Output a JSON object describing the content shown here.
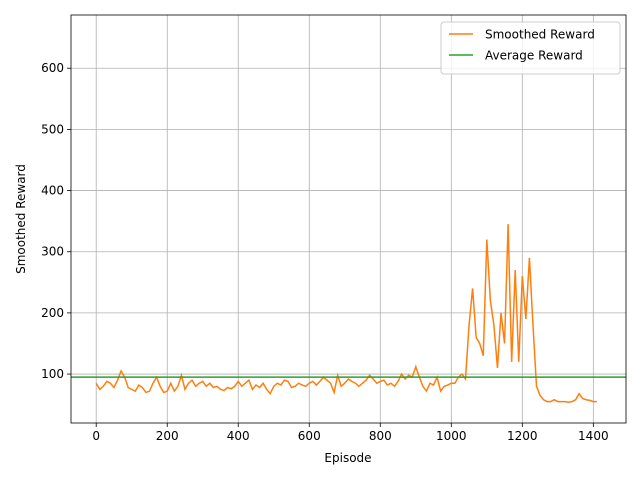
{
  "chart_data": {
    "type": "line",
    "xlabel": "Episode",
    "ylabel": "Smoothed Reward",
    "x": [
      0,
      10,
      20,
      30,
      40,
      50,
      60,
      70,
      80,
      90,
      100,
      110,
      120,
      130,
      140,
      150,
      160,
      170,
      180,
      190,
      200,
      210,
      220,
      230,
      240,
      250,
      260,
      270,
      280,
      290,
      300,
      310,
      320,
      330,
      340,
      350,
      360,
      370,
      380,
      390,
      400,
      410,
      420,
      430,
      440,
      450,
      460,
      470,
      480,
      490,
      500,
      510,
      520,
      530,
      540,
      550,
      560,
      570,
      580,
      590,
      600,
      610,
      620,
      630,
      640,
      650,
      660,
      670,
      680,
      690,
      700,
      710,
      720,
      730,
      740,
      750,
      760,
      770,
      780,
      790,
      800,
      810,
      820,
      830,
      840,
      850,
      860,
      870,
      880,
      890,
      900,
      910,
      920,
      930,
      940,
      950,
      960,
      970,
      980,
      990,
      1000,
      1010,
      1020,
      1030,
      1040,
      1050,
      1060,
      1070,
      1080,
      1090,
      1100,
      1110,
      1120,
      1130,
      1140,
      1150,
      1160,
      1170,
      1180,
      1190,
      1200,
      1210,
      1220,
      1230,
      1240,
      1250,
      1260,
      1270,
      1280,
      1290,
      1300,
      1310,
      1320,
      1330,
      1340,
      1350,
      1360,
      1370,
      1380,
      1390,
      1400,
      1410
    ],
    "series": [
      {
        "name": "Smoothed Reward",
        "color": "#ff7f0e",
        "values": [
          85,
          75,
          80,
          88,
          85,
          78,
          90,
          105,
          95,
          78,
          75,
          72,
          82,
          78,
          70,
          72,
          85,
          95,
          80,
          70,
          72,
          85,
          72,
          80,
          98,
          75,
          85,
          90,
          80,
          85,
          88,
          80,
          85,
          78,
          80,
          75,
          73,
          78,
          76,
          80,
          88,
          80,
          85,
          90,
          75,
          82,
          78,
          85,
          75,
          68,
          80,
          85,
          82,
          90,
          88,
          78,
          80,
          85,
          82,
          80,
          85,
          88,
          82,
          88,
          95,
          90,
          85,
          70,
          98,
          80,
          85,
          92,
          88,
          85,
          80,
          85,
          90,
          98,
          92,
          85,
          88,
          90,
          82,
          85,
          80,
          88,
          100,
          92,
          98,
          95,
          112,
          95,
          80,
          72,
          85,
          82,
          95,
          72,
          80,
          82,
          85,
          85,
          95,
          100,
          92,
          180,
          240,
          160,
          150,
          130,
          320,
          220,
          180,
          110,
          200,
          150,
          345,
          120,
          270,
          120,
          260,
          190,
          290,
          180,
          80,
          65,
          58,
          55,
          55,
          58,
          55,
          55,
          55,
          54,
          55,
          58,
          68,
          60,
          58,
          57,
          55,
          55
        ]
      }
    ],
    "hlines": [
      {
        "name": "Average Reward",
        "color": "#2ca02c",
        "value": 95
      }
    ],
    "xlim": [
      -71,
      1492
    ],
    "ylim": [
      20,
      687
    ],
    "xticks": [
      0,
      200,
      400,
      600,
      800,
      1000,
      1200,
      1400
    ],
    "yticks": [
      100,
      200,
      300,
      400,
      500,
      600
    ],
    "grid": true,
    "legend": "upper-right"
  }
}
